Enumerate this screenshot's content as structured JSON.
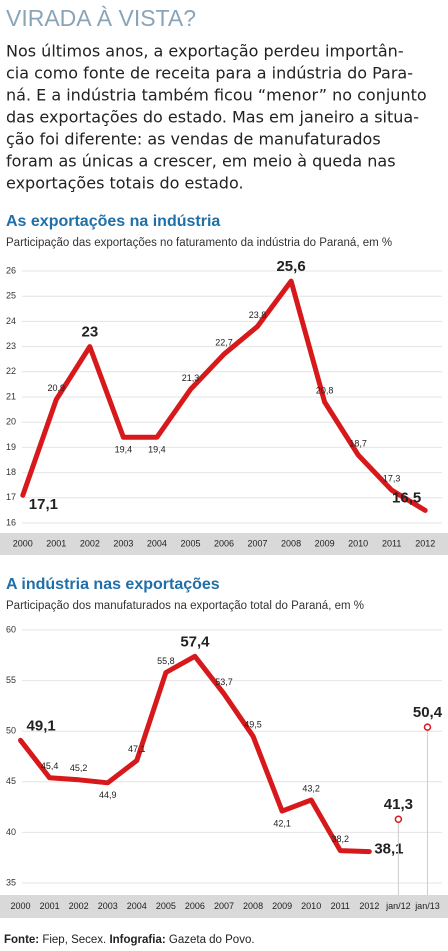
{
  "header": {
    "title": "VIRADA À VISTA?",
    "intro": [
      "Nos últimos anos, a exportação perdeu importân-",
      "cia como fonte de receita para a indústria do Para-",
      "ná. E a indústria também ficou “menor” no conjunto",
      "das exportações do estado. Mas em janeiro a situa-",
      "ção foi diferente: as vendas de manufaturados",
      "foram as únicas a crescer, em meio à queda nas",
      "exportações totais do estado."
    ]
  },
  "chart_data": [
    {
      "type": "line",
      "title": "As exportações na indústria",
      "subtitle": "Participação das exportações no faturamento da indústria do Paraná, em %",
      "categories": [
        "2000",
        "2001",
        "2002",
        "2003",
        "2004",
        "2005",
        "2006",
        "2007",
        "2008",
        "2009",
        "2010",
        "2011",
        "2012"
      ],
      "ylim": [
        16,
        26
      ],
      "yticks": [
        16,
        17,
        18,
        19,
        20,
        21,
        22,
        23,
        24,
        25,
        26
      ],
      "grid": true,
      "series": [
        {
          "color": "#d7191c",
          "style": "line",
          "values": [
            17.1,
            20.9,
            23,
            19.4,
            19.4,
            21.3,
            22.7,
            23.8,
            25.6,
            20.8,
            18.7,
            17.3,
            16.5
          ],
          "value_labels": [
            "17,1",
            "20,9",
            "23",
            "19,4",
            "19,4",
            "21,3",
            "22,7",
            "23,8",
            "25,6",
            "20,8",
            "18,7",
            "17,3",
            "16,5"
          ]
        }
      ]
    },
    {
      "type": "line",
      "title": "A indústria nas exportações",
      "subtitle": "Participação dos manufaturados na exportação total do Paraná, em %",
      "categories": [
        "2000",
        "2001",
        "2002",
        "2003",
        "2004",
        "2005",
        "2006",
        "2007",
        "2008",
        "2009",
        "2010",
        "2011",
        "2012",
        "jan/12",
        "jan/13"
      ],
      "ylim": [
        35,
        60
      ],
      "yticks": [
        35,
        40,
        45,
        50,
        55,
        60
      ],
      "grid": true,
      "series": [
        {
          "color": "#d7191c",
          "style": "line",
          "values": [
            49.1,
            45.4,
            45.2,
            44.9,
            47.1,
            55.8,
            57.4,
            53.7,
            49.5,
            42.1,
            43.2,
            38.2,
            38.1,
            null,
            null
          ],
          "value_labels": [
            "49,1",
            "45,4",
            "45,2",
            "44,9",
            "47,1",
            "55,8",
            "57,4",
            "53,7",
            "49,5",
            "42,1",
            "43,2",
            "38,2",
            "38,1",
            null,
            null
          ]
        },
        {
          "color": "#d7191c",
          "style": "dot",
          "values": [
            null,
            null,
            null,
            null,
            null,
            null,
            null,
            null,
            null,
            null,
            null,
            null,
            null,
            41.3,
            50.4
          ],
          "value_labels": [
            null,
            null,
            null,
            null,
            null,
            null,
            null,
            null,
            null,
            null,
            null,
            null,
            null,
            "41,3",
            "50,4"
          ]
        }
      ]
    }
  ],
  "footer": {
    "source_label": "Fonte:",
    "source": " Fiep, Secex. ",
    "credit_label": "Infografia:",
    "credit": " Gazeta do Povo."
  }
}
